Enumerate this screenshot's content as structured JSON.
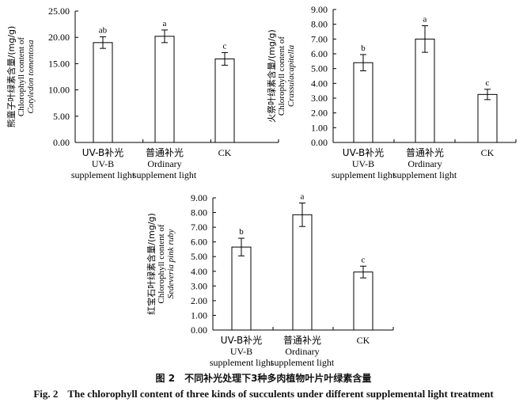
{
  "chart_data": [
    {
      "type": "bar",
      "ylabel_cn": "熊童子叶绿素含量/(mg/g)",
      "ylabel_en": "Chlorophyll content of",
      "ylabel_species": "Cotyledon tomentosa",
      "ylim": [
        0,
        25
      ],
      "yticks": [
        "0.00",
        "5.00",
        "10.00",
        "15.00",
        "20.00",
        "25.00"
      ],
      "categories": [
        [
          "UV-B补光",
          "UV-B",
          "supplement light"
        ],
        [
          "普通补光",
          "Ordinary",
          "supplement light"
        ],
        [
          "CK"
        ]
      ],
      "values": [
        19.0,
        20.2,
        15.9
      ],
      "errors": [
        1.1,
        1.2,
        1.2
      ],
      "letters": [
        "ab",
        "a",
        "c"
      ]
    },
    {
      "type": "bar",
      "ylabel_cn": "火祭叶绿素含量/(mg/g)",
      "ylabel_en": "Chlorophyll content of",
      "ylabel_species": "Crassulacapitella",
      "ylim": [
        0,
        9
      ],
      "yticks": [
        "0.00",
        "1.00",
        "2.00",
        "3.00",
        "4.00",
        "5.00",
        "6.00",
        "7.00",
        "8.00",
        "9.00"
      ],
      "categories": [
        [
          "UV-B补光",
          "UV-B",
          "supplement light"
        ],
        [
          "普通补光",
          "Ordinary",
          "supplement light"
        ],
        [
          "CK"
        ]
      ],
      "values": [
        5.4,
        7.0,
        3.25
      ],
      "errors": [
        0.55,
        0.9,
        0.35
      ],
      "letters": [
        "b",
        "a",
        "c"
      ]
    },
    {
      "type": "bar",
      "ylabel_cn": "红宝石叶绿素含量/(mg/g)",
      "ylabel_en": "Chlorophyll content of",
      "ylabel_species": "Sedeveria pink ruby",
      "ylim": [
        0,
        9
      ],
      "yticks": [
        "0.00",
        "1.00",
        "2.00",
        "3.00",
        "4.00",
        "5.00",
        "6.00",
        "7.00",
        "8.00",
        "9.00"
      ],
      "categories": [
        [
          "UV-B补光",
          "UV-B",
          "supplement light"
        ],
        [
          "普通补光",
          "Ordinary",
          "supplement light"
        ],
        [
          "CK"
        ]
      ],
      "values": [
        5.65,
        7.85,
        3.95
      ],
      "errors": [
        0.6,
        0.8,
        0.4
      ],
      "letters": [
        "b",
        "a",
        "c"
      ]
    }
  ],
  "caption": {
    "cn_num": "图 2",
    "cn_text": "不同补光处理下3种多肉植物叶片叶绿素含量",
    "en_num": "Fig. 2",
    "en_text": "The chlorophyll content of three kinds of succulents under different supplemental light treatment"
  }
}
